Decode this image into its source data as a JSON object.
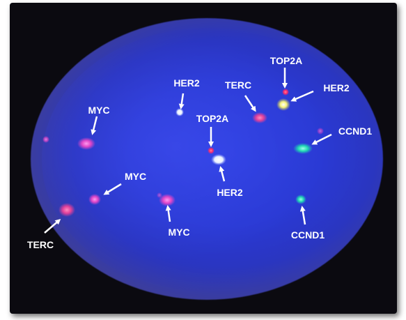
{
  "labels": {
    "myc_1": "MYC",
    "myc_2": "MYC",
    "myc_3": "MYC",
    "terc_1": "TERC",
    "terc_2": "TERC",
    "her2_1": "HER2",
    "her2_2": "HER2",
    "her2_3": "HER2",
    "top2a_1": "TOP2A",
    "top2a_2": "TOP2A",
    "ccnd1_1": "CCND1",
    "ccnd1_2": "CCND1"
  },
  "colors": {
    "nucleus": "#2a3bd6",
    "myc_signal": "#e046c8",
    "terc_signal": "#e0409a",
    "her2_signal": "#f4f4b0",
    "top2a_signal": "#ff2a6a",
    "ccnd1_signal": "#20d8b0",
    "arrow": "#ffffff"
  }
}
